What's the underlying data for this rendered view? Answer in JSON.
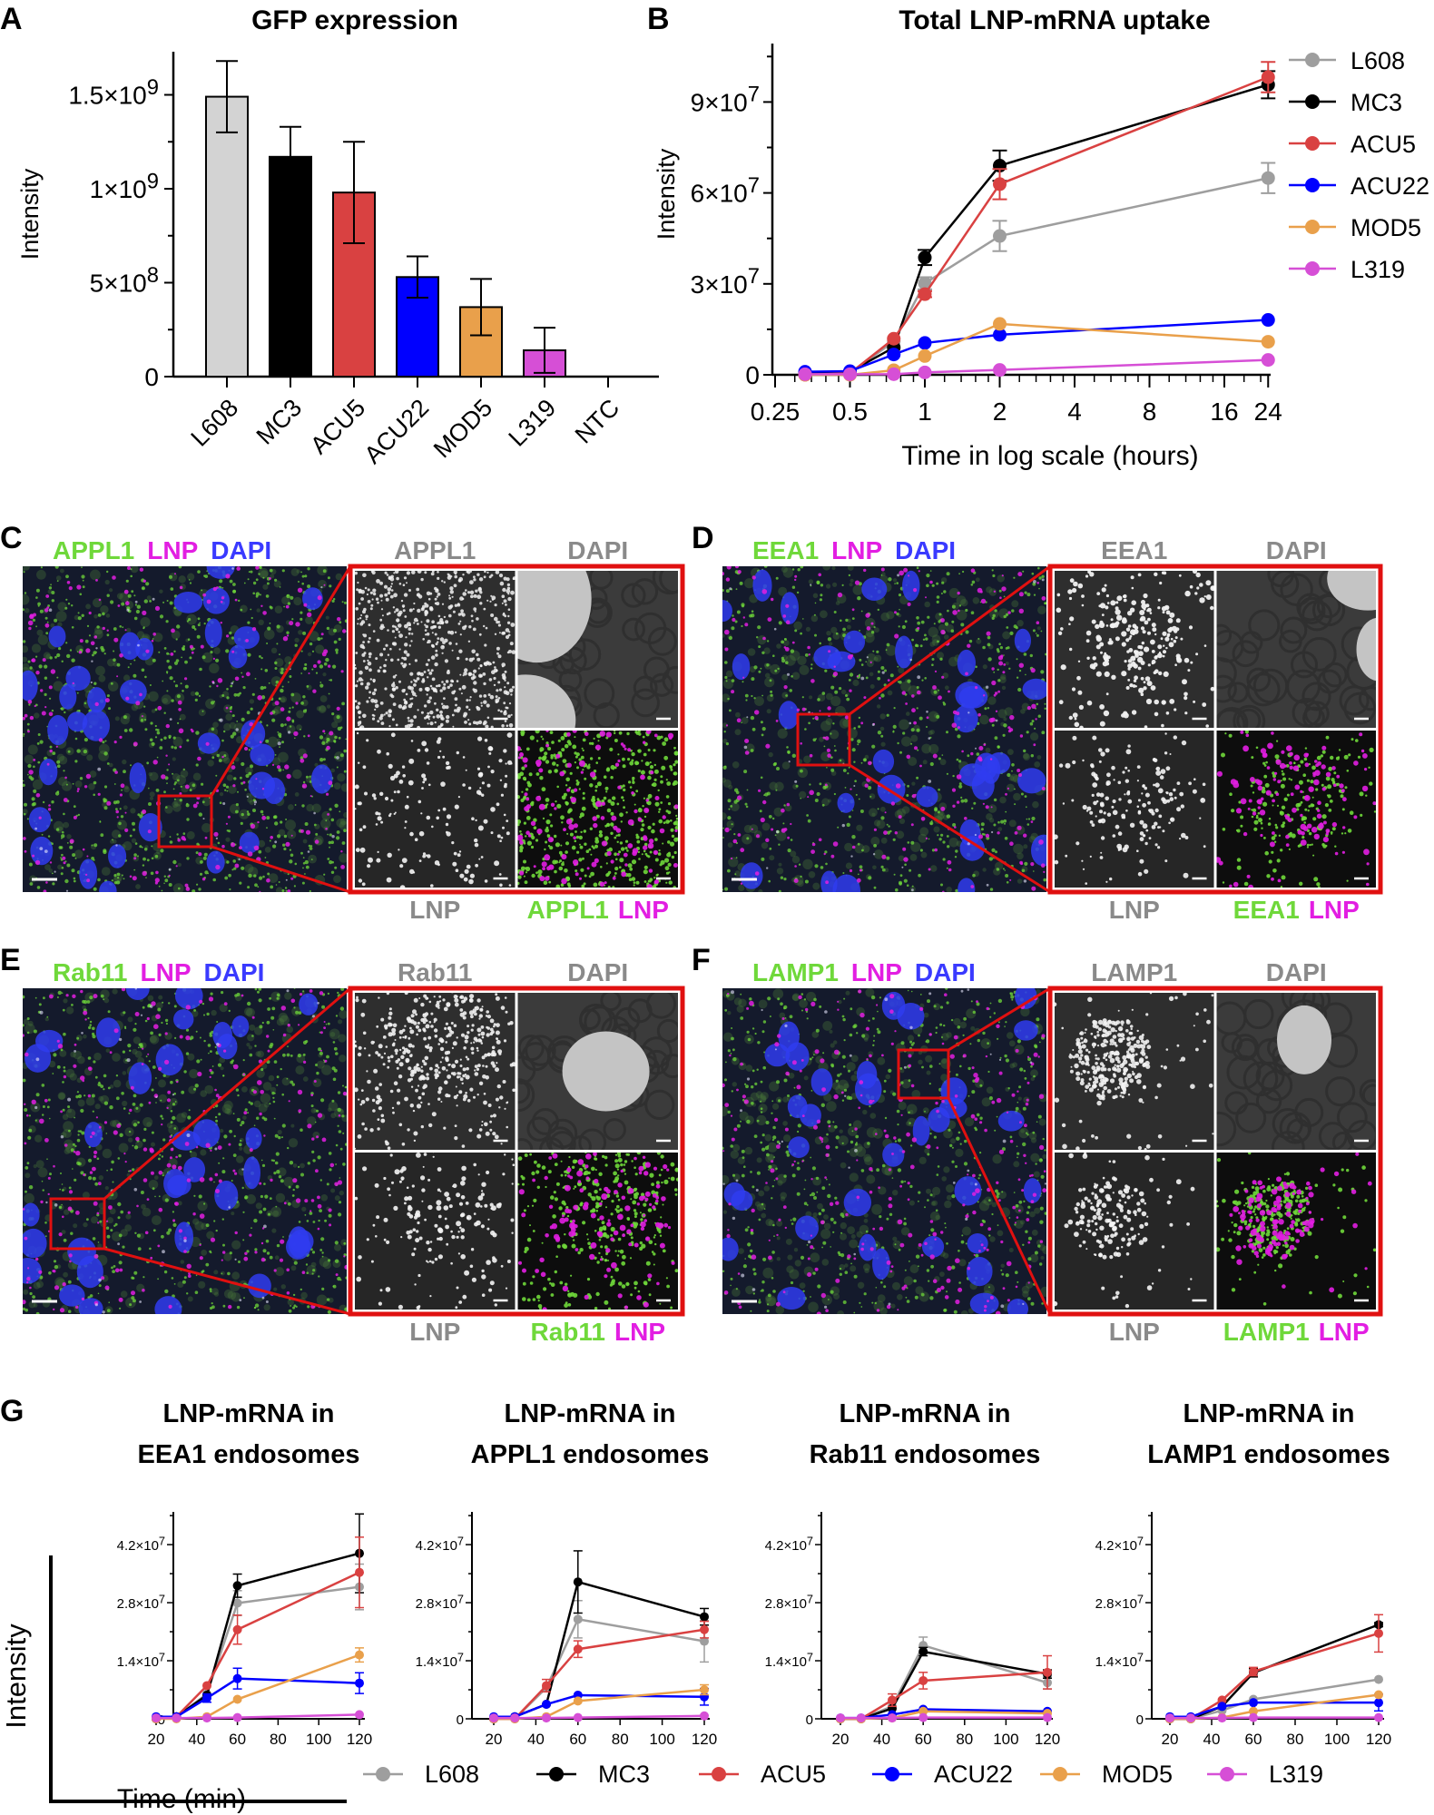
{
  "panel_letters": [
    "A",
    "B",
    "C",
    "D",
    "E",
    "F",
    "G"
  ],
  "colors": {
    "L608": "#9e9e9e",
    "L608_bar": "#d3d3d3",
    "MC3": "#000000",
    "ACU5": "#d94141",
    "ACU22": "#0000ff",
    "MOD5": "#e9a04b",
    "L319": "#d64fd6",
    "NTC": "#000000",
    "green": "#6fd83a",
    "magenta": "#e21ee2",
    "blue": "#3a3aff",
    "gray_label": "#8a8a8a",
    "inset_frame": "#e01010"
  },
  "chart_data": [
    {
      "id": "A",
      "type": "bar",
      "title": "GFP expression",
      "xlabel": "",
      "ylabel": "Intensity",
      "categories": [
        "L608",
        "MC3",
        "ACU5",
        "ACU22",
        "MOD5",
        "L319",
        "NTC"
      ],
      "values": [
        1490000000.0,
        1170000000.0,
        980000000.0,
        530000000.0,
        370000000.0,
        140000000.0,
        0
      ],
      "errors": [
        190000000.0,
        160000000.0,
        270000000.0,
        110000000.0,
        150000000.0,
        120000000.0,
        0
      ],
      "ylim": [
        0,
        1720000000.0
      ],
      "yticks": [
        0,
        500000000.0,
        1000000000.0,
        1500000000.0
      ],
      "ytick_labels": [
        "0",
        "5×10^8",
        "1×10^9",
        "1.5×10^9"
      ]
    },
    {
      "id": "B",
      "type": "line",
      "title": "Total LNP-mRNA uptake",
      "xlabel": "Time in log scale (hours)",
      "ylabel": "Intensity",
      "xscale": "log2",
      "xlim": [
        0.25,
        26
      ],
      "ylim": [
        0,
        109000000.0
      ],
      "xticks": [
        0.25,
        0.5,
        1,
        2,
        4,
        8,
        16,
        24
      ],
      "xtick_labels": [
        "0.25",
        "0.5",
        "1",
        "2",
        "4",
        "8",
        "16",
        "24"
      ],
      "yticks": [
        0,
        30000000.0,
        60000000.0,
        90000000.0
      ],
      "ytick_labels": [
        "0",
        "3×10^7",
        "6×10^7",
        "9×10^7"
      ],
      "legend": "right",
      "x": [
        0.33,
        0.5,
        0.75,
        1,
        2,
        24
      ],
      "series": [
        {
          "name": "L608",
          "values": [
            0.0,
            500000.0,
            11000000.0,
            30200000.0,
            45800000.0,
            64900000.0
          ],
          "errors": [
            0,
            0,
            0,
            2000000.0,
            5000000.0,
            5000000.0
          ]
        },
        {
          "name": "MC3",
          "values": [
            500000.0,
            1000000.0,
            9000000.0,
            38700000.0,
            69000000.0,
            95700000.0
          ],
          "errors": [
            0,
            0,
            0,
            2500000.0,
            5000000.0,
            4500000.0
          ]
        },
        {
          "name": "ACU5",
          "values": [
            0.0,
            500000.0,
            11900000.0,
            26600000.0,
            62900000.0,
            98200000.0
          ],
          "errors": [
            0,
            0,
            0,
            1000000.0,
            5000000.0,
            5000000.0
          ]
        },
        {
          "name": "ACU22",
          "values": [
            1000000.0,
            1200000.0,
            6700000.0,
            10500000.0,
            13200000.0,
            18100000.0
          ],
          "errors": [
            0,
            0,
            0,
            0,
            0,
            0
          ]
        },
        {
          "name": "MOD5",
          "values": [
            0.0,
            0.0,
            1500000.0,
            6200000.0,
            16800000.0,
            10900000.0
          ],
          "errors": [
            0,
            0,
            0,
            0,
            0,
            0
          ]
        },
        {
          "name": "L319",
          "values": [
            200000.0,
            200000.0,
            200000.0,
            800000.0,
            1600000.0,
            4900000.0
          ],
          "errors": [
            0,
            0,
            0,
            0,
            0,
            0
          ]
        }
      ]
    },
    {
      "id": "G1",
      "type": "line",
      "title": [
        "LNP-mRNA in",
        "EEA1 endosomes"
      ],
      "x": [
        20,
        30,
        45,
        60,
        120
      ],
      "xticks": [
        20,
        40,
        60,
        80,
        100,
        120
      ],
      "xtick_labels": [
        "20",
        "40",
        "60",
        "80",
        "100",
        "120"
      ],
      "ylim": [
        0,
        50000000.0
      ],
      "yticks": [
        0,
        14000000.0,
        28000000.0,
        42000000.0
      ],
      "ytick_labels": [
        "0",
        "1.4×10^7",
        "2.8×10^7",
        "4.2×10^7"
      ],
      "series": [
        {
          "name": "L608",
          "values": [
            0,
            500000.0,
            6000000.0,
            27900000.0,
            31800000.0
          ],
          "errors": [
            0,
            0,
            0,
            3000000.0,
            5500000.0
          ]
        },
        {
          "name": "MC3",
          "values": [
            0,
            500000.0,
            5700000.0,
            32100000.0,
            39900000.0
          ],
          "errors": [
            0,
            0,
            0,
            2800000.0,
            9500000.0
          ]
        },
        {
          "name": "ACU5",
          "values": [
            0,
            500000.0,
            8000000.0,
            21500000.0,
            35300000.0
          ],
          "errors": [
            0,
            0,
            0,
            3500000.0,
            8500000.0
          ]
        },
        {
          "name": "ACU22",
          "values": [
            500000.0,
            500000.0,
            5000000.0,
            9700000.0,
            8600000.0
          ],
          "errors": [
            0,
            0,
            1000000.0,
            2500000.0,
            2500000.0
          ]
        },
        {
          "name": "MOD5",
          "values": [
            0,
            0,
            500000.0,
            4700000.0,
            15400000.0
          ],
          "errors": [
            0,
            0,
            0,
            0,
            1700000.0
          ]
        },
        {
          "name": "L319",
          "values": [
            200000.0,
            200000.0,
            200000.0,
            300000.0,
            1000000.0
          ],
          "errors": [
            0,
            0,
            0,
            0,
            0
          ]
        }
      ]
    },
    {
      "id": "G2",
      "type": "line",
      "title": [
        "LNP-mRNA in",
        "APPL1 endosomes"
      ],
      "x": [
        20,
        30,
        45,
        60,
        120
      ],
      "xticks": [
        20,
        40,
        60,
        80,
        100,
        120
      ],
      "xtick_labels": [
        "20",
        "40",
        "60",
        "80",
        "100",
        "120"
      ],
      "ylim": [
        0,
        50000000.0
      ],
      "yticks": [
        0,
        14000000.0,
        28000000.0,
        42000000.0
      ],
      "ytick_labels": [
        "0",
        "1.4×10^7",
        "2.8×10^7",
        "4.2×10^7"
      ],
      "series": [
        {
          "name": "L608",
          "values": [
            0,
            0,
            7500000.0,
            24000000.0,
            18700000.0
          ],
          "errors": [
            0,
            0,
            0,
            4500000.0,
            5000000.0
          ]
        },
        {
          "name": "MC3",
          "values": [
            0,
            500000.0,
            3500000.0,
            33000000.0,
            24600000.0
          ],
          "errors": [
            0,
            0,
            0,
            7500000.0,
            2000000.0
          ]
        },
        {
          "name": "ACU5",
          "values": [
            0,
            0,
            8000000.0,
            16800000.0,
            21500000.0
          ],
          "errors": [
            0,
            0,
            1500000.0,
            2000000.0,
            2000000.0
          ]
        },
        {
          "name": "ACU22",
          "values": [
            500000.0,
            500000.0,
            3500000.0,
            5700000.0,
            5300000.0
          ],
          "errors": [
            0,
            0,
            0,
            0,
            2000000.0
          ]
        },
        {
          "name": "MOD5",
          "values": [
            0,
            0,
            500000.0,
            4300000.0,
            7000000.0
          ],
          "errors": [
            0,
            0,
            0,
            0,
            1200000.0
          ]
        },
        {
          "name": "L319",
          "values": [
            200000.0,
            200000.0,
            200000.0,
            300000.0,
            700000.0
          ],
          "errors": [
            0,
            0,
            0,
            0,
            0
          ]
        }
      ]
    },
    {
      "id": "G3",
      "type": "line",
      "title": [
        "LNP-mRNA in",
        "Rab11 endosomes"
      ],
      "x": [
        20,
        30,
        45,
        60,
        120
      ],
      "xticks": [
        20,
        40,
        60,
        80,
        100,
        120
      ],
      "xtick_labels": [
        "20",
        "40",
        "60",
        "80",
        "100",
        "120"
      ],
      "ylim": [
        0,
        50000000.0
      ],
      "yticks": [
        0,
        14000000.0,
        28000000.0,
        42000000.0
      ],
      "ytick_labels": [
        "0",
        "1.4×10^7",
        "2.8×10^7",
        "4.2×10^7"
      ],
      "series": [
        {
          "name": "L608",
          "values": [
            0,
            0,
            3000000.0,
            17700000.0,
            8700000.0
          ],
          "errors": [
            0,
            0,
            0,
            2000000.0,
            1500000.0
          ]
        },
        {
          "name": "MC3",
          "values": [
            0,
            0,
            2500000.0,
            16200000.0,
            10800000.0
          ],
          "errors": [
            0,
            0,
            0,
            1000000.0,
            1000000.0
          ]
        },
        {
          "name": "ACU5",
          "values": [
            0,
            0,
            4500000.0,
            9200000.0,
            11200000.0
          ],
          "errors": [
            0,
            0,
            1500000.0,
            2000000.0,
            4000000.0
          ]
        },
        {
          "name": "ACU22",
          "values": [
            200000.0,
            200000.0,
            1000000.0,
            2300000.0,
            1800000.0
          ],
          "errors": [
            0,
            0,
            0,
            0,
            0
          ]
        },
        {
          "name": "MOD5",
          "values": [
            0,
            0,
            200000.0,
            1800000.0,
            1300000.0
          ],
          "errors": [
            0,
            0,
            0,
            0,
            0
          ]
        },
        {
          "name": "L319",
          "values": [
            200000.0,
            200000.0,
            200000.0,
            300000.0,
            300000.0
          ],
          "errors": [
            0,
            0,
            0,
            0,
            0
          ]
        }
      ]
    },
    {
      "id": "G4",
      "type": "line",
      "title": [
        "LNP-mRNA in",
        "LAMP1 endosomes"
      ],
      "x": [
        20,
        30,
        45,
        60,
        120
      ],
      "xticks": [
        20,
        40,
        60,
        80,
        100,
        120
      ],
      "xtick_labels": [
        "20",
        "40",
        "60",
        "80",
        "100",
        "120"
      ],
      "ylim": [
        0,
        50000000.0
      ],
      "yticks": [
        0,
        14000000.0,
        28000000.0,
        42000000.0
      ],
      "ytick_labels": [
        "0",
        "1.4×10^7",
        "2.8×10^7",
        "4.2×10^7"
      ],
      "series": [
        {
          "name": "L608",
          "values": [
            0,
            0,
            2000000.0,
            4700000.0,
            9500000.0
          ],
          "errors": [
            0,
            0,
            0,
            0,
            0
          ]
        },
        {
          "name": "MC3",
          "values": [
            0,
            0,
            3000000.0,
            11100000.0,
            22700000.0
          ],
          "errors": [
            0,
            0,
            0,
            1000000.0,
            500000.0
          ]
        },
        {
          "name": "ACU5",
          "values": [
            0,
            0,
            4500000.0,
            11400000.0,
            20600000.0
          ],
          "errors": [
            0,
            0,
            0,
            1000000.0,
            4500000.0
          ]
        },
        {
          "name": "ACU22",
          "values": [
            500000.0,
            500000.0,
            3000000.0,
            3900000.0,
            3900000.0
          ],
          "errors": [
            0,
            0,
            0,
            0,
            2000000.0
          ]
        },
        {
          "name": "MOD5",
          "values": [
            0,
            0,
            300000.0,
            1800000.0,
            5800000.0
          ],
          "errors": [
            0,
            0,
            0,
            0,
            0
          ]
        },
        {
          "name": "L319",
          "values": [
            200000.0,
            200000.0,
            200000.0,
            300000.0,
            300000.0
          ],
          "errors": [
            0,
            0,
            0,
            0,
            0
          ]
        }
      ]
    }
  ],
  "g_axes": {
    "ylabel": "Intensity",
    "xlabel": "Time (min)"
  },
  "g_legend": [
    "L608",
    "MC3",
    "ACU5",
    "ACU22",
    "MOD5",
    "L319"
  ],
  "micrographs": [
    {
      "panel": "C",
      "marker": "APPL1",
      "composite_labels": [
        "APPL1",
        "LNP",
        "DAPI"
      ],
      "inset_top": [
        "APPL1",
        "DAPI"
      ],
      "inset_bottom": [
        "LNP",
        "APPL1",
        "LNP"
      ]
    },
    {
      "panel": "D",
      "marker": "EEA1",
      "composite_labels": [
        "EEA1",
        "LNP",
        "DAPI"
      ],
      "inset_top": [
        "EEA1",
        "DAPI"
      ],
      "inset_bottom": [
        "LNP",
        "EEA1",
        "LNP"
      ]
    },
    {
      "panel": "E",
      "marker": "Rab11",
      "composite_labels": [
        "Rab11",
        "LNP",
        "DAPI"
      ],
      "inset_top": [
        "Rab11",
        "DAPI"
      ],
      "inset_bottom": [
        "LNP",
        "Rab11",
        "LNP"
      ]
    },
    {
      "panel": "F",
      "marker": "LAMP1",
      "composite_labels": [
        "LAMP1",
        "LNP",
        "DAPI"
      ],
      "inset_top": [
        "LAMP1",
        "DAPI"
      ],
      "inset_bottom": [
        "LNP",
        "LAMP1",
        "LNP"
      ]
    }
  ]
}
